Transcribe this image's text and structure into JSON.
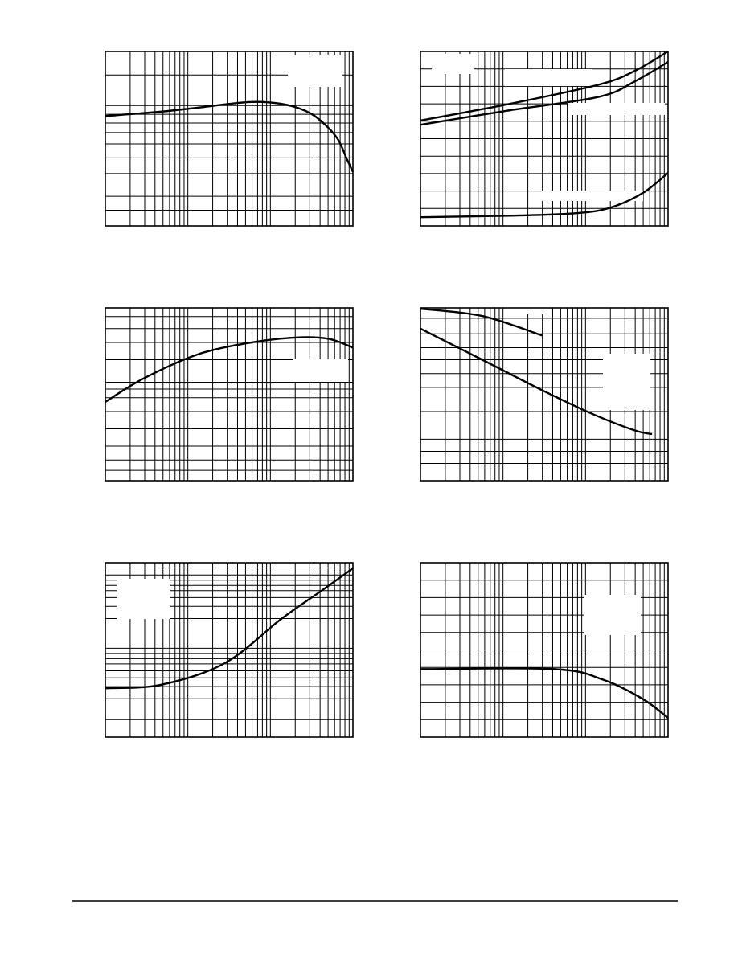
{
  "page": {
    "background": "#ffffff",
    "ink": "#000000"
  },
  "chart_data": [
    {
      "type": "line",
      "x_scale": "log",
      "xlim": [
        1,
        1000
      ],
      "ylim": [
        0,
        100
      ],
      "grid": true,
      "series": [
        {
          "points": [
            [
              1,
              63
            ],
            [
              4.7,
              65.5
            ],
            [
              14.4,
              68
            ],
            [
              55,
              71
            ],
            [
              135,
              70
            ],
            [
              265,
              66
            ],
            [
              415,
              60
            ],
            [
              650,
              50
            ],
            [
              850,
              38
            ],
            [
              1000,
              31
            ]
          ]
        }
      ]
    },
    {
      "type": "line",
      "x_scale": "log",
      "xlim": [
        1,
        1000
      ],
      "ylim": [
        0,
        100
      ],
      "grid": true,
      "series": [
        {
          "points": [
            [
              1,
              60.4
            ],
            [
              11,
              69.6
            ],
            [
              145,
              81
            ],
            [
              400,
              89
            ],
            [
              1000,
              100
            ]
          ]
        },
        {
          "points": [
            [
              1,
              58
            ],
            [
              11,
              66
            ],
            [
              145,
              74
            ],
            [
              400,
              83
            ],
            [
              1000,
              94
            ]
          ]
        },
        {
          "points": [
            [
              1,
              5
            ],
            [
              17,
              6
            ],
            [
              83,
              7.4
            ],
            [
              204,
              10.6
            ],
            [
              500,
              19
            ],
            [
              1000,
              30.4
            ]
          ]
        }
      ]
    },
    {
      "type": "line",
      "x_scale": "log",
      "xlim": [
        1,
        1000
      ],
      "ylim": [
        0,
        100
      ],
      "grid": true,
      "series": [
        {
          "points": [
            [
              1,
              45.6
            ],
            [
              3,
              59.5
            ],
            [
              14,
              73.5
            ],
            [
              69,
              80.5
            ],
            [
              237,
              83
            ],
            [
              520,
              82
            ],
            [
              1000,
              77
            ]
          ]
        }
      ]
    },
    {
      "type": "line",
      "x_scale": "log",
      "xlim": [
        1,
        1000
      ],
      "ylim": [
        0,
        100
      ],
      "grid": true,
      "series": [
        {
          "points": [
            [
              1,
              99.5
            ],
            [
              5.6,
              95.3
            ],
            [
              30,
              84
            ]
          ]
        },
        {
          "points": [
            [
              1,
              88
            ],
            [
              5.6,
              70
            ],
            [
              34,
              51
            ],
            [
              130,
              38
            ],
            [
              400,
              29
            ],
            [
              640,
              27
            ]
          ]
        }
      ]
    },
    {
      "type": "line",
      "x_scale": "log",
      "xlim": [
        1,
        1000
      ],
      "ylim": [
        0,
        100
      ],
      "grid": true,
      "series": [
        {
          "points": [
            [
              1,
              28
            ],
            [
              4.7,
              30
            ],
            [
              28,
              42.4
            ],
            [
              135,
              67.7
            ],
            [
              415,
              83.9
            ],
            [
              1000,
              96.8
            ]
          ]
        }
      ]
    },
    {
      "type": "line",
      "x_scale": "log",
      "xlim": [
        1,
        1000
      ],
      "ylim": [
        0,
        100
      ],
      "grid": true,
      "series": [
        {
          "points": [
            [
              1,
              39
            ],
            [
              42,
              39
            ],
            [
              162,
              33
            ],
            [
              500,
              21.7
            ],
            [
              1000,
              11
            ]
          ]
        }
      ]
    }
  ]
}
